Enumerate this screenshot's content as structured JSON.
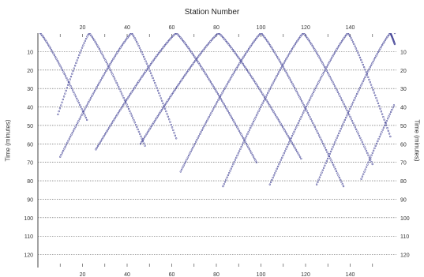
{
  "chart_data": {
    "type": "line",
    "title": "Station Number",
    "ylabel_left": "Time (minutes)",
    "ylabel_right": "Time (minutes)",
    "x_ticks": [
      20,
      40,
      60,
      80,
      100,
      120,
      140
    ],
    "x_tick_labels_top": [
      "20",
      "40",
      "60",
      "80",
      "100",
      "120",
      "140"
    ],
    "x_tick_labels_bottom": [
      "20",
      "40",
      "60",
      "80",
      "100",
      "120",
      "140"
    ],
    "y_ticks": [
      10,
      20,
      30,
      40,
      50,
      60,
      70,
      80,
      90,
      100,
      110,
      120
    ],
    "y_tick_labels_left": [
      "10",
      "20",
      "30",
      "40",
      "50",
      "60",
      "70",
      "80",
      "90",
      "100",
      "110",
      "120"
    ],
    "y_tick_labels_right": [
      "10",
      "20",
      "30",
      "40",
      "50",
      "60",
      "70",
      "80",
      "90",
      "100",
      "110",
      "120"
    ],
    "xlim": [
      0,
      160
    ],
    "ylim": [
      0,
      127
    ],
    "y_inverted": true,
    "grid": "horizontal dashed",
    "marker_color": "#4a4a9a",
    "gridline_color": "#555555",
    "series": [
      {
        "apex_station": 1,
        "apex_time": 0,
        "left_station": 1,
        "left_time": 0,
        "right_station": 22,
        "right_time": 47
      },
      {
        "apex_station": 23,
        "apex_time": 0,
        "left_station": 9,
        "left_time": 44,
        "right_station": 48,
        "right_time": 61
      },
      {
        "apex_station": 42,
        "apex_time": 0,
        "left_station": 10,
        "left_time": 67,
        "right_station": 62,
        "right_time": 57
      },
      {
        "apex_station": 62,
        "apex_time": 0,
        "left_station": 26,
        "left_time": 63,
        "right_station": 98,
        "right_time": 70
      },
      {
        "apex_station": 81,
        "apex_time": 0,
        "left_station": 46,
        "left_time": 60,
        "right_station": 118,
        "right_time": 68
      },
      {
        "apex_station": 100,
        "apex_time": 0,
        "left_station": 64,
        "left_time": 75,
        "right_station": 137,
        "right_time": 83
      },
      {
        "apex_station": 119,
        "apex_time": 0,
        "left_station": 83,
        "left_time": 83,
        "right_station": 150,
        "right_time": 71
      },
      {
        "apex_station": 139,
        "apex_time": 0,
        "left_station": 104,
        "left_time": 82,
        "right_station": 158,
        "right_time": 56
      },
      {
        "apex_station": 158,
        "apex_time": 0,
        "left_station": 125,
        "left_time": 82,
        "right_station": 160,
        "right_time": 6
      },
      {
        "apex_station": 177,
        "apex_time": 0,
        "left_station": 145,
        "left_time": 79,
        "right_station": 160,
        "right_time": 0
      }
    ]
  }
}
